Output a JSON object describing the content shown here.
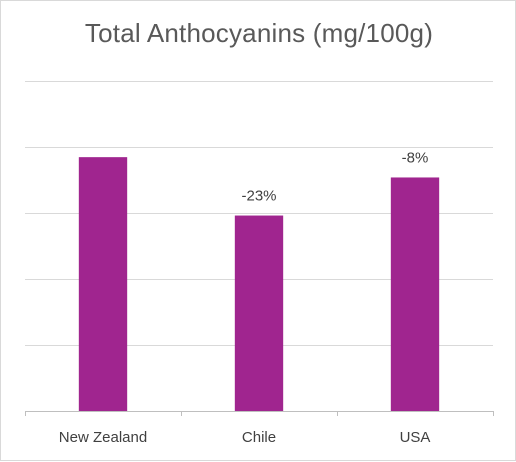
{
  "chart_data": {
    "type": "bar",
    "title": "Total Anthocyanins (mg/100g)",
    "categories": [
      "New Zealand",
      "Chile",
      "USA"
    ],
    "values": [
      100,
      77,
      92
    ],
    "data_labels": [
      "",
      "-23%",
      "-8%"
    ],
    "ylim": [
      0,
      130
    ],
    "gridline_step": 26,
    "grid": true,
    "legend": "none",
    "bar_color": "#a0258f",
    "gridline_color": "#d9d9d9",
    "axis_color": "#bfbfbf"
  }
}
